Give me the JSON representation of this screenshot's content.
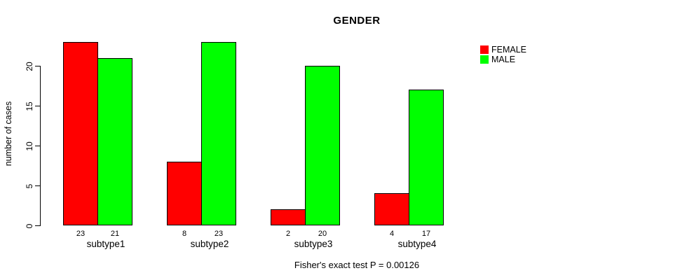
{
  "title": "GENDER",
  "ylabel": "number of cases",
  "caption": "Fisher's exact test P = 0.00126",
  "colors": {
    "female": "#ff0000",
    "male": "#00ff00",
    "axis": "#000000",
    "background": "#ffffff"
  },
  "legend": {
    "position": "topright",
    "items": [
      {
        "label": "FEMALE",
        "color": "#ff0000"
      },
      {
        "label": "MALE",
        "color": "#00ff00"
      }
    ]
  },
  "chart_data": {
    "type": "bar",
    "grouped": true,
    "title": "GENDER",
    "xlabel": "",
    "ylabel": "number of cases",
    "categories": [
      "subtype1",
      "subtype2",
      "subtype3",
      "subtype4"
    ],
    "series": [
      {
        "name": "FEMALE",
        "color": "#ff0000",
        "values": [
          23,
          8,
          2,
          4
        ]
      },
      {
        "name": "MALE",
        "color": "#00ff00",
        "values": [
          21,
          23,
          20,
          17
        ]
      }
    ],
    "bar_value_labels": {
      "FEMALE": [
        "23",
        "8",
        "2",
        "4"
      ],
      "MALE": [
        "21",
        "23",
        "20",
        "17"
      ]
    },
    "yticks": [
      0,
      5,
      10,
      15,
      20
    ],
    "ylim": [
      0,
      23
    ],
    "grid": false,
    "legend_position": "topright",
    "annotation": "Fisher's exact test P = 0.00126"
  }
}
